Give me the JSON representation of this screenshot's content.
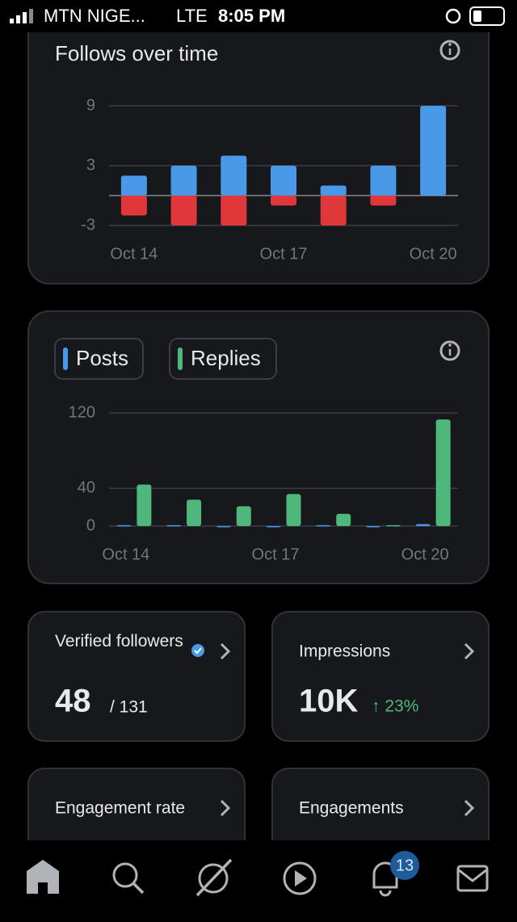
{
  "status_bar": {
    "carrier": "MTN NIGE...",
    "network": "LTE",
    "time": "8:05 PM"
  },
  "chart_data": [
    {
      "type": "bar",
      "title": "Follows over time",
      "stacked": true,
      "categories": [
        "Oct 14",
        null,
        null,
        "Oct 17",
        null,
        null,
        "Oct 20"
      ],
      "series": [
        {
          "color": "#4a99e9",
          "values": [
            2,
            3,
            4,
            3,
            1,
            3,
            9
          ]
        },
        {
          "color": "#e0383a",
          "values": [
            -2,
            -3,
            -3,
            -1,
            -3,
            -1,
            0
          ]
        }
      ],
      "ylim": [
        -3,
        9
      ],
      "yticks": [
        9,
        3,
        -3
      ],
      "grid": true
    },
    {
      "type": "bar",
      "stacked": false,
      "categories": [
        "Oct 14",
        null,
        null,
        "Oct 17",
        null,
        null,
        "Oct 20"
      ],
      "series": [
        {
          "name": "Posts",
          "color": "#4a99e9",
          "values": [
            1,
            1,
            0,
            0,
            1,
            0,
            2
          ]
        },
        {
          "name": "Replies",
          "color": "#4fb77b",
          "values": [
            44,
            28,
            21,
            34,
            13,
            1,
            113
          ]
        }
      ],
      "ylim": [
        0,
        120
      ],
      "yticks": [
        120,
        40,
        0
      ],
      "grid": true
    }
  ],
  "cards": [
    {
      "title": "Verified followers",
      "value": "48",
      "total": "/ 131"
    },
    {
      "title": "Impressions",
      "value": "10K",
      "change": "↑ 23%"
    },
    {
      "title": "Engagement rate"
    },
    {
      "title": "Engagements"
    }
  ],
  "nav": {
    "badge": "13"
  }
}
